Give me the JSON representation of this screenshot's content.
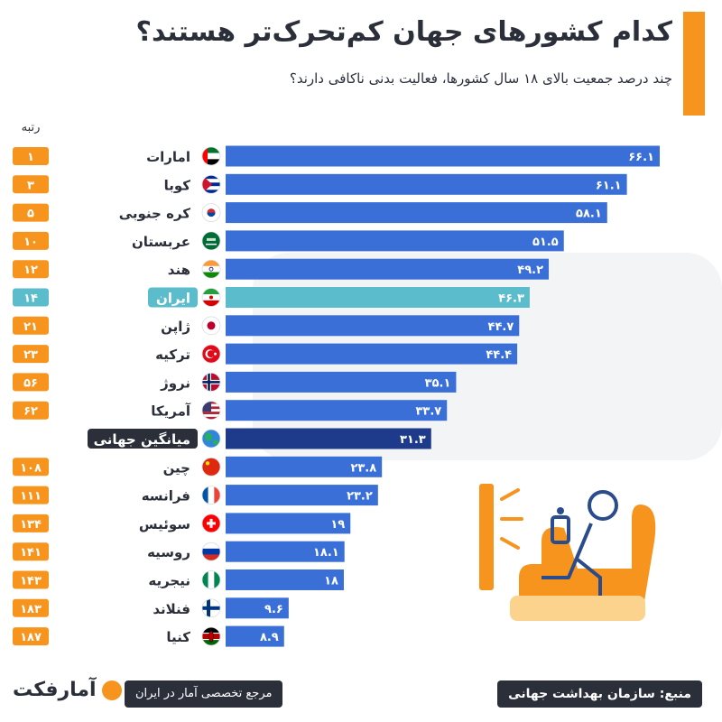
{
  "header": {
    "title": "کدام کشورهای جهان کم‌تحرک‌تر هستند؟",
    "subtitle": "چند درصد جمعیت بالای ۱۸ سال کشورها، فعالیت بدنی ناکافی دارند؟",
    "rank_label": "رتبه"
  },
  "colors": {
    "bar": "#3a6fd8",
    "iran_bar": "#5bbccb",
    "world_bar": "#1e3a8a",
    "rank_badge": "#f7941d",
    "iran_badge": "#5bbccb",
    "accent": "#f7941d",
    "dark": "#2b2f3a"
  },
  "chart_data": {
    "type": "bar",
    "orientation": "horizontal",
    "title": "کدام کشورهای جهان کم‌تحرک‌تر هستند؟",
    "subtitle": "چند درصد جمعیت بالای ۱۸ سال کشورها، فعالیت بدنی ناکافی دارند؟",
    "xlim": [
      0,
      70
    ],
    "categories": [
      "امارات",
      "کوبا",
      "کره جنوبی",
      "عربستان",
      "هند",
      "ایران",
      "ژاپن",
      "ترکیه",
      "نروژ",
      "آمریکا",
      "میانگین جهانی",
      "چین",
      "فرانسه",
      "سوئیس",
      "روسیه",
      "نیجریه",
      "فنلاند",
      "کنیا"
    ],
    "values": [
      66.1,
      61.1,
      58.1,
      51.5,
      49.2,
      46.3,
      44.7,
      44.4,
      35.1,
      33.7,
      31.3,
      23.8,
      23.2,
      19,
      18.1,
      18,
      9.6,
      8.9
    ],
    "value_labels": [
      "۶۶.۱",
      "۶۱.۱",
      "۵۸.۱",
      "۵۱.۵",
      "۴۹.۲",
      "۴۶.۳",
      "۴۴.۷",
      "۴۴.۴",
      "۳۵.۱",
      "۳۳.۷",
      "۳۱.۳",
      "۲۳.۸",
      "۲۳.۲",
      "۱۹",
      "۱۸.۱",
      "۱۸",
      "۹.۶",
      "۸.۹"
    ],
    "ranks": [
      "۱",
      "۳",
      "۵",
      "۱۰",
      "۱۲",
      "۱۴",
      "۲۱",
      "۲۳",
      "۵۶",
      "۶۲",
      "",
      "۱۰۸",
      "۱۱۱",
      "۱۳۴",
      "۱۴۱",
      "۱۴۳",
      "۱۸۳",
      "۱۸۷"
    ],
    "flags": [
      "uae-flag",
      "cuba-flag",
      "south-korea-flag",
      "saudi-flag",
      "india-flag",
      "iran-flag",
      "japan-flag",
      "turkey-flag",
      "norway-flag",
      "usa-flag",
      "globe-icon",
      "china-flag",
      "france-flag",
      "switzerland-flag",
      "russia-flag",
      "nigeria-flag",
      "finland-flag",
      "kenya-flag"
    ],
    "highlight": {
      "iran": 5,
      "world_average": 10
    }
  },
  "footer": {
    "logo_text": "آمارفکت",
    "tagline": "مرجع تخصصی آمار در ایران",
    "source": "منبع: سازمان بهداشت جهانی"
  }
}
